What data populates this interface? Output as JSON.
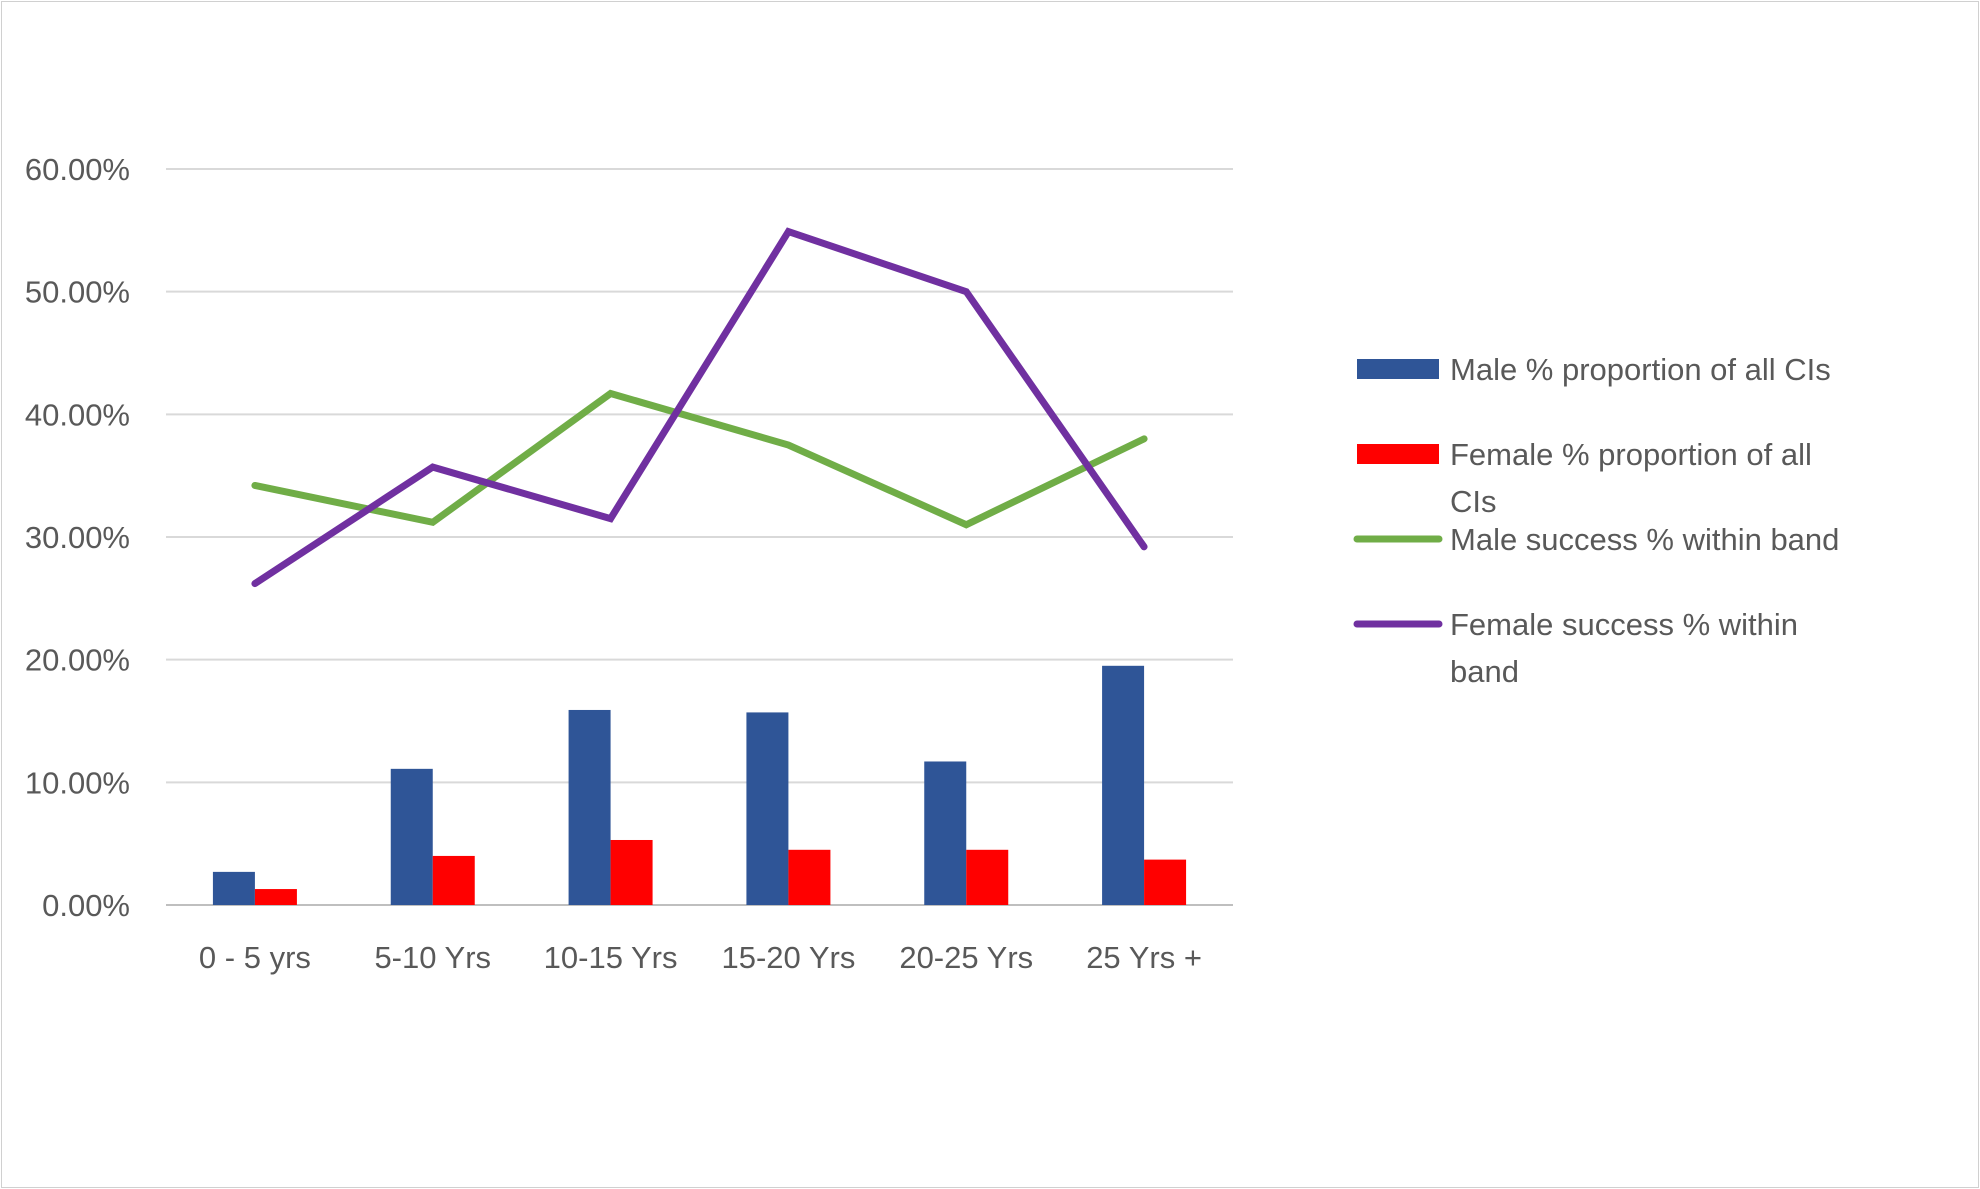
{
  "chart_data": {
    "type": "bar",
    "categories": [
      "0 - 5 yrs",
      "5-10 Yrs",
      "10-15 Yrs",
      "15-20 Yrs",
      "20-25 Yrs",
      "25 Yrs +"
    ],
    "ylim": [
      0,
      0.6
    ],
    "yticks": [
      0,
      0.1,
      0.2,
      0.3,
      0.4,
      0.5,
      0.6
    ],
    "ytick_labels": [
      "0.00%",
      "10.00%",
      "20.00%",
      "30.00%",
      "40.00%",
      "50.00%",
      "60.00%"
    ],
    "grid": true,
    "legend_position": "right",
    "series": [
      {
        "name": "Male % proportion of all CIs",
        "type": "bar",
        "color": "#2f5597",
        "values": [
          0.027,
          0.111,
          0.159,
          0.157,
          0.117,
          0.195
        ]
      },
      {
        "name": "Female % proportion of all CIs",
        "type": "bar",
        "color": "#ff0000",
        "values": [
          0.013,
          0.04,
          0.053,
          0.045,
          0.045,
          0.037
        ]
      },
      {
        "name": "Male success % within band",
        "type": "line",
        "color": "#70ad47",
        "values": [
          0.342,
          0.312,
          0.417,
          0.375,
          0.31,
          0.38
        ]
      },
      {
        "name": "Female success % within band",
        "type": "line",
        "color": "#7030a0",
        "values": [
          0.262,
          0.357,
          0.315,
          0.549,
          0.5,
          0.292
        ]
      }
    ]
  }
}
